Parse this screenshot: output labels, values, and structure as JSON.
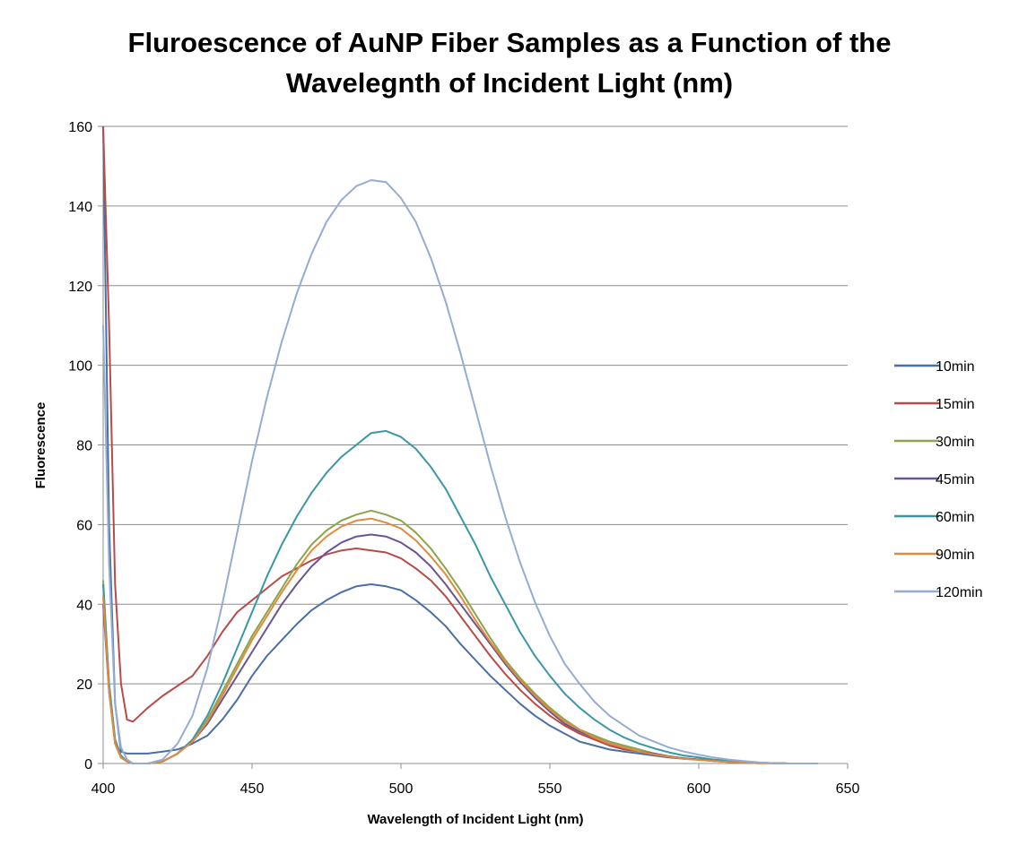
{
  "chart_data": {
    "type": "line",
    "title_line1": "Fluroescence of AuNP Fiber Samples as a Function of the",
    "title_line2": "Wavelegnth of Incident Light (nm)",
    "xlabel": "Wavelength of Incident Light (nm)",
    "ylabel": "Fluorescence",
    "xlim": [
      400,
      650
    ],
    "ylim": [
      0,
      160
    ],
    "xticks": [
      400,
      450,
      500,
      550,
      600,
      650
    ],
    "yticks": [
      0,
      20,
      40,
      60,
      80,
      100,
      120,
      140,
      160
    ],
    "grid": "horizontal",
    "legend_position": "right",
    "x": [
      400,
      402,
      404,
      406,
      408,
      410,
      415,
      420,
      425,
      430,
      435,
      440,
      445,
      450,
      455,
      460,
      465,
      470,
      475,
      480,
      485,
      490,
      495,
      500,
      505,
      510,
      515,
      520,
      525,
      530,
      535,
      540,
      545,
      550,
      555,
      560,
      565,
      570,
      575,
      580,
      585,
      590,
      595,
      600,
      605,
      610,
      615,
      620,
      625,
      630,
      640
    ],
    "series": [
      {
        "name": "10min",
        "color": "#4a6fa5",
        "values": [
          160,
          60,
          15,
          3,
          2.5,
          2.5,
          2.5,
          3,
          3.5,
          5,
          7,
          11,
          16,
          22,
          27,
          31,
          35,
          38.5,
          41,
          43,
          44.5,
          45,
          44.5,
          43.5,
          41,
          38,
          34.5,
          30,
          26,
          22,
          18.5,
          15,
          12,
          9.5,
          7.5,
          5.5,
          4.5,
          3.5,
          3,
          2.5,
          2,
          1.5,
          1.2,
          1,
          0.7,
          0.5,
          0.3,
          0.2,
          0.1,
          0,
          0
        ]
      },
      {
        "name": "15min",
        "color": "#b84a48",
        "values": [
          160,
          110,
          45,
          20,
          11,
          10.5,
          14,
          17,
          19.5,
          22,
          27,
          33,
          38,
          41,
          44,
          47,
          49,
          51,
          52.5,
          53.5,
          54,
          53.5,
          53,
          51.5,
          49,
          46,
          42,
          37,
          32,
          27,
          22.5,
          18.5,
          15,
          12,
          9.5,
          7.5,
          6,
          4.5,
          3.5,
          3,
          2.2,
          1.7,
          1.3,
          1,
          0.8,
          0.5,
          0.3,
          0.2,
          0.1,
          0,
          0
        ]
      },
      {
        "name": "30min",
        "color": "#8ca44a",
        "values": [
          46,
          20,
          6,
          1.5,
          0.5,
          0,
          0,
          0.5,
          2.5,
          6,
          11,
          18,
          25,
          32,
          38,
          44,
          50,
          55,
          58.5,
          61,
          62.5,
          63.5,
          62.5,
          61,
          58,
          54,
          49,
          43.5,
          37.5,
          31.5,
          26,
          21.5,
          17.5,
          14,
          11,
          8.5,
          7,
          5.5,
          4.5,
          3.5,
          2.5,
          1.8,
          1.3,
          1,
          0.6,
          0.4,
          0.2,
          0.1,
          0.1,
          0,
          0
        ]
      },
      {
        "name": "45min",
        "color": "#6a5494",
        "values": [
          40,
          18,
          5,
          1.5,
          0.5,
          0,
          0,
          0.5,
          2.5,
          5.5,
          10,
          16,
          22,
          28,
          34,
          40,
          45,
          49.5,
          53,
          55.5,
          57,
          57.5,
          57,
          55.5,
          53,
          49.5,
          45,
          40,
          35,
          30,
          25,
          20.5,
          16.5,
          13,
          10,
          8,
          6.5,
          5,
          4,
          3,
          2.5,
          1.8,
          1.3,
          1,
          0.6,
          0.4,
          0.2,
          0.1,
          0.1,
          0,
          0
        ]
      },
      {
        "name": "60min",
        "color": "#3b97a6",
        "values": [
          45,
          20,
          6,
          2,
          0.5,
          0,
          0,
          0.5,
          2.5,
          6,
          12,
          20,
          29,
          38,
          47,
          55,
          62,
          68,
          73,
          77,
          80,
          83,
          83.5,
          82,
          79,
          74.5,
          69,
          62,
          55,
          47,
          40,
          33,
          27,
          22,
          17.5,
          14,
          11,
          8.5,
          6.5,
          5,
          3.8,
          2.8,
          2,
          1.5,
          1,
          0.7,
          0.4,
          0.2,
          0.1,
          0,
          0
        ]
      },
      {
        "name": "90min",
        "color": "#e08a3c",
        "values": [
          42,
          18,
          5,
          1.5,
          0.5,
          0,
          0,
          0.5,
          2.5,
          5.5,
          10.5,
          17,
          24,
          31,
          37,
          43,
          48.5,
          53.5,
          57,
          59.5,
          61,
          61.5,
          60.5,
          59,
          56,
          52,
          47.5,
          42,
          36,
          30.5,
          25.5,
          21,
          17,
          13.5,
          10.5,
          8.5,
          6.5,
          5,
          4,
          3,
          2.3,
          1.7,
          1.2,
          0.9,
          0.6,
          0.4,
          0.2,
          0.1,
          0.1,
          0,
          0
        ]
      },
      {
        "name": "120min",
        "color": "#94acd2",
        "values": [
          110,
          50,
          15,
          4,
          1,
          0,
          0,
          1,
          5,
          12,
          24,
          40,
          58,
          76,
          92,
          106,
          118,
          128,
          136,
          141.5,
          145,
          146.5,
          146,
          142,
          136,
          127,
          116,
          103,
          89,
          75,
          62,
          50.5,
          40.5,
          32,
          25,
          20,
          15.5,
          12,
          9.5,
          7,
          5.5,
          4,
          3,
          2.2,
          1.5,
          1,
          0.6,
          0.3,
          0.1,
          0,
          0
        ]
      }
    ]
  }
}
